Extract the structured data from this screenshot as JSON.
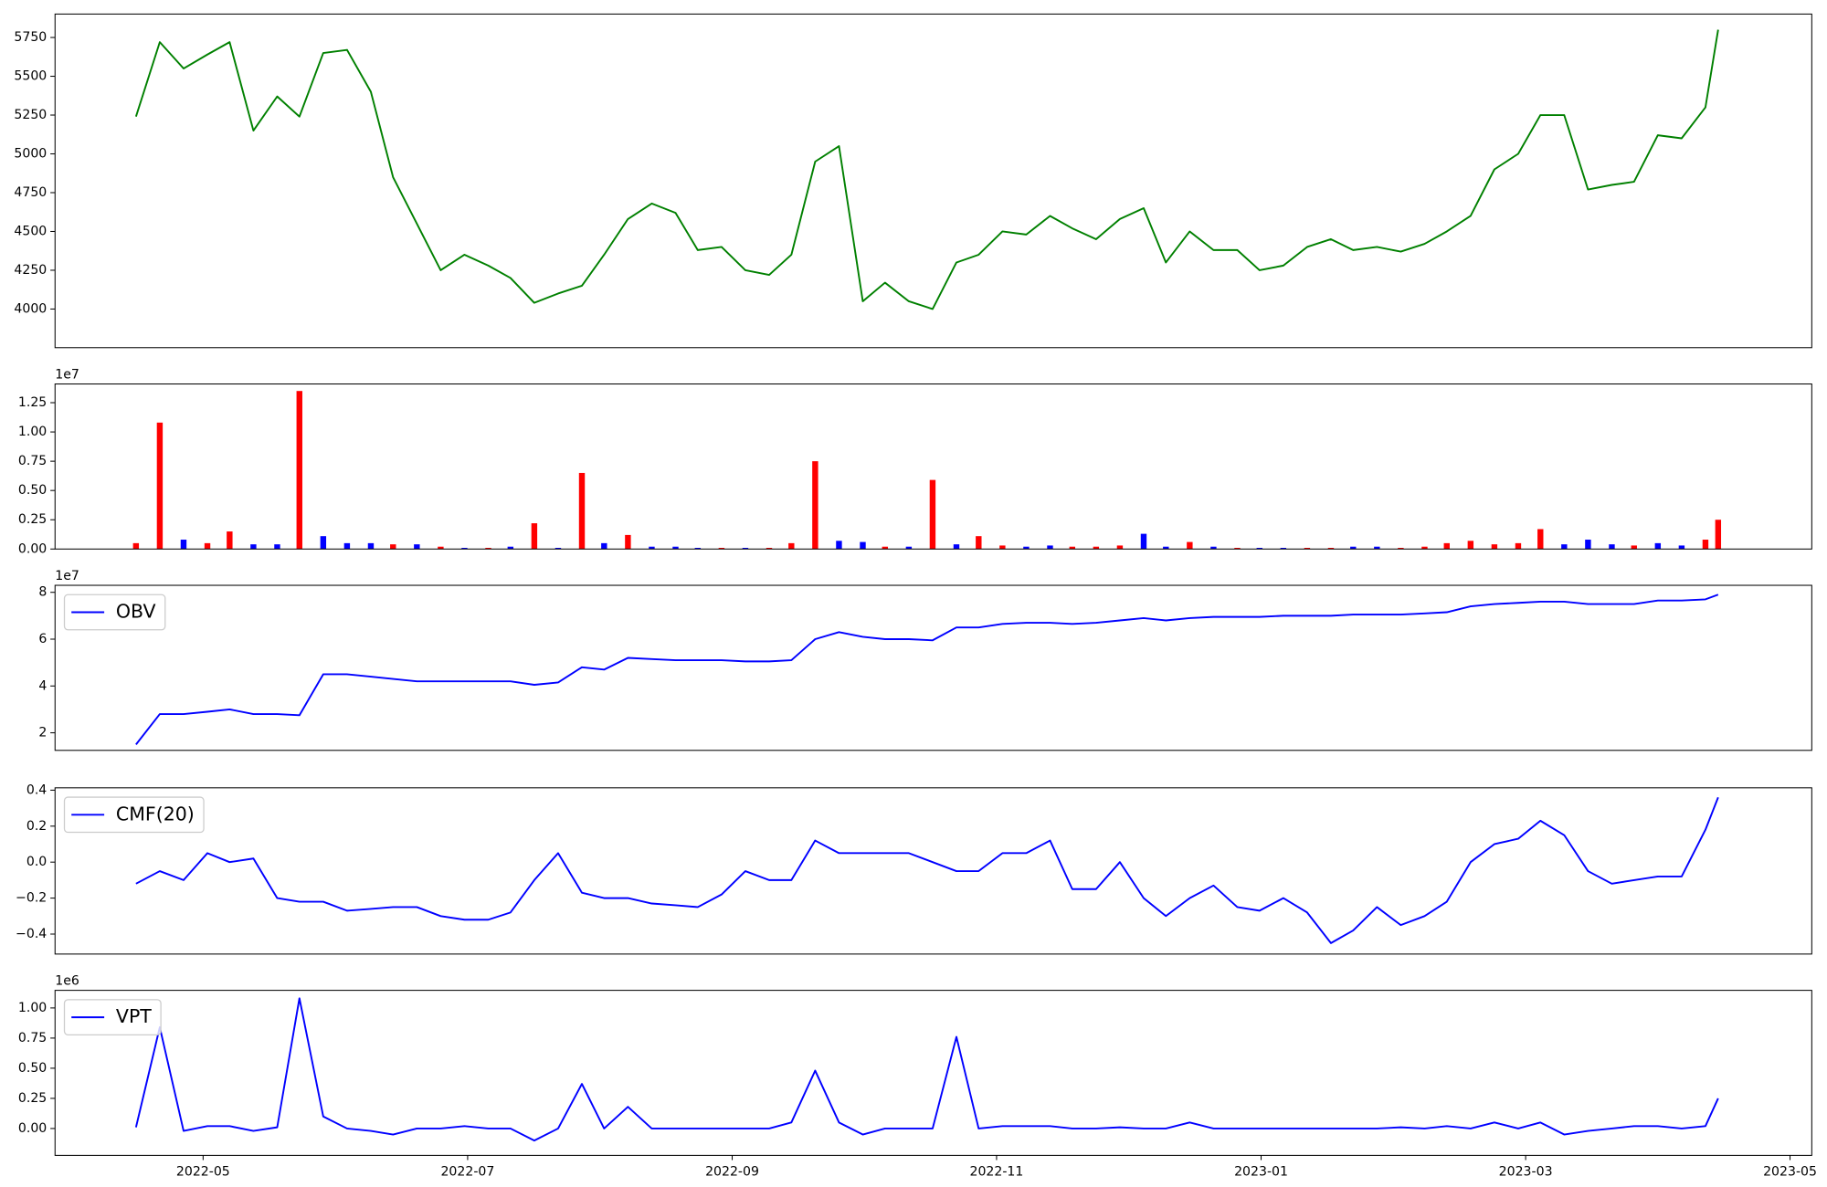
{
  "chart_data": [
    {
      "type": "line",
      "color": "#008000",
      "x": [
        2022.291,
        2022.306,
        2022.321,
        2022.336,
        2022.35,
        2022.365,
        2022.38,
        2022.394,
        2022.409,
        2022.424,
        2022.439,
        2022.453,
        2022.468,
        2022.483,
        2022.498,
        2022.513,
        2022.527,
        2022.542,
        2022.557,
        2022.572,
        2022.586,
        2022.601,
        2022.616,
        2022.631,
        2022.645,
        2022.66,
        2022.675,
        2022.69,
        2022.704,
        2022.719,
        2022.734,
        2022.749,
        2022.763,
        2022.778,
        2022.793,
        2022.808,
        2022.822,
        2022.837,
        2022.852,
        2022.867,
        2022.881,
        2022.896,
        2022.911,
        2022.926,
        2022.94,
        2022.955,
        2022.97,
        2022.985,
        2022.999,
        2023.014,
        2023.029,
        2023.044,
        2023.058,
        2023.073,
        2023.088,
        2023.103,
        2023.117,
        2023.132,
        2023.147,
        2023.162,
        2023.176,
        2023.191,
        2023.206,
        2023.221,
        2023.235,
        2023.25,
        2023.265,
        2023.28,
        2023.288
      ],
      "values": [
        5240,
        5720,
        5550,
        5640,
        5720,
        5150,
        5370,
        5240,
        5650,
        5670,
        5400,
        4850,
        4550,
        4250,
        4350,
        4280,
        4200,
        4040,
        4100,
        4150,
        4350,
        4580,
        4680,
        4620,
        4380,
        4400,
        4250,
        4220,
        4350,
        4950,
        5050,
        4050,
        4170,
        4050,
        4000,
        4300,
        4350,
        4500,
        4480,
        4600,
        4520,
        4450,
        4580,
        4650,
        4300,
        4500,
        4380,
        4380,
        4250,
        4280,
        4400,
        4450,
        4380,
        4400,
        4370,
        4420,
        4500,
        4600,
        4900,
        5000,
        5250,
        5250,
        4770,
        4800,
        4820,
        5120,
        5100,
        5300,
        5800
      ],
      "xlim": [
        2022.24,
        2023.347
      ],
      "ylim": [
        3751,
        5901
      ],
      "yticks": [
        4000,
        4250,
        4500,
        4750,
        5000,
        5250,
        5500,
        5750
      ]
    },
    {
      "type": "bar",
      "y_offset_label": "1e7",
      "x": [
        2022.291,
        2022.306,
        2022.321,
        2022.336,
        2022.35,
        2022.365,
        2022.38,
        2022.394,
        2022.409,
        2022.424,
        2022.439,
        2022.453,
        2022.468,
        2022.483,
        2022.498,
        2022.513,
        2022.527,
        2022.542,
        2022.557,
        2022.572,
        2022.586,
        2022.601,
        2022.616,
        2022.631,
        2022.645,
        2022.66,
        2022.675,
        2022.69,
        2022.704,
        2022.719,
        2022.734,
        2022.749,
        2022.763,
        2022.778,
        2022.793,
        2022.808,
        2022.822,
        2022.837,
        2022.852,
        2022.867,
        2022.881,
        2022.896,
        2022.911,
        2022.926,
        2022.94,
        2022.955,
        2022.97,
        2022.985,
        2022.999,
        2023.014,
        2023.029,
        2023.044,
        2023.058,
        2023.073,
        2023.088,
        2023.103,
        2023.117,
        2023.132,
        2023.147,
        2023.162,
        2023.176,
        2023.191,
        2023.206,
        2023.221,
        2023.235,
        2023.25,
        2023.265,
        2023.28,
        2023.288
      ],
      "values": [
        500000,
        10800000,
        800000,
        500000,
        1500000,
        400000,
        400000,
        13500000,
        1100000,
        500000,
        500000,
        400000,
        400000,
        200000,
        100000,
        100000,
        200000,
        2200000,
        100000,
        6500000,
        500000,
        1200000,
        200000,
        200000,
        100000,
        100000,
        100000,
        100000,
        500000,
        7500000,
        700000,
        600000,
        200000,
        200000,
        5900000,
        400000,
        1100000,
        300000,
        200000,
        300000,
        200000,
        200000,
        300000,
        1300000,
        200000,
        600000,
        200000,
        100000,
        100000,
        100000,
        100000,
        100000,
        200000,
        200000,
        100000,
        200000,
        500000,
        700000,
        400000,
        500000,
        1700000,
        400000,
        800000,
        400000,
        300000,
        500000,
        300000,
        800000,
        2500000
      ],
      "colors": [
        "#ff0000",
        "#ff0000",
        "#0000ff",
        "#ff0000",
        "#ff0000",
        "#0000ff",
        "#0000ff",
        "#ff0000",
        "#0000ff",
        "#0000ff",
        "#0000ff",
        "#ff0000",
        "#0000ff",
        "#ff0000",
        "#0000ff",
        "#ff0000",
        "#0000ff",
        "#ff0000",
        "#0000ff",
        "#ff0000",
        "#0000ff",
        "#ff0000",
        "#0000ff",
        "#0000ff",
        "#0000ff",
        "#ff0000",
        "#0000ff",
        "#ff0000",
        "#ff0000",
        "#ff0000",
        "#0000ff",
        "#0000ff",
        "#ff0000",
        "#0000ff",
        "#ff0000",
        "#0000ff",
        "#ff0000",
        "#ff0000",
        "#0000ff",
        "#0000ff",
        "#ff0000",
        "#ff0000",
        "#ff0000",
        "#0000ff",
        "#0000ff",
        "#ff0000",
        "#0000ff",
        "#ff0000",
        "#0000ff",
        "#0000ff",
        "#ff0000",
        "#ff0000",
        "#0000ff",
        "#0000ff",
        "#ff0000",
        "#ff0000",
        "#ff0000",
        "#ff0000",
        "#ff0000",
        "#ff0000",
        "#ff0000",
        "#0000ff",
        "#0000ff",
        "#0000ff",
        "#ff0000",
        "#0000ff",
        "#0000ff",
        "#ff0000",
        "#ff0000"
      ],
      "xlim": [
        2022.24,
        2023.347
      ],
      "ylim": [
        0,
        14100000
      ],
      "yticks": [
        {
          "value": 0,
          "label": "0.00"
        },
        {
          "value": 2500000,
          "label": "0.25"
        },
        {
          "value": 5000000,
          "label": "0.50"
        },
        {
          "value": 7500000,
          "label": "0.75"
        },
        {
          "value": 10000000,
          "label": "1.00"
        },
        {
          "value": 12500000,
          "label": "1.25"
        }
      ]
    },
    {
      "type": "line",
      "y_offset_label": "1e7",
      "legend": "upper left",
      "x": [
        2022.291,
        2022.306,
        2022.321,
        2022.336,
        2022.35,
        2022.365,
        2022.38,
        2022.394,
        2022.409,
        2022.424,
        2022.439,
        2022.453,
        2022.468,
        2022.483,
        2022.498,
        2022.513,
        2022.527,
        2022.542,
        2022.557,
        2022.572,
        2022.586,
        2022.601,
        2022.616,
        2022.631,
        2022.645,
        2022.66,
        2022.675,
        2022.69,
        2022.704,
        2022.719,
        2022.734,
        2022.749,
        2022.763,
        2022.778,
        2022.793,
        2022.808,
        2022.822,
        2022.837,
        2022.852,
        2022.867,
        2022.881,
        2022.896,
        2022.911,
        2022.926,
        2022.94,
        2022.955,
        2022.97,
        2022.985,
        2022.999,
        2023.014,
        2023.029,
        2023.044,
        2023.058,
        2023.073,
        2023.088,
        2023.103,
        2023.117,
        2023.132,
        2023.147,
        2023.162,
        2023.176,
        2023.191,
        2023.206,
        2023.221,
        2023.235,
        2023.25,
        2023.265,
        2023.28,
        2023.288
      ],
      "series": [
        {
          "name": "OBV",
          "color": "#0000ff",
          "values": [
            15000000,
            28000000,
            28000000,
            29000000,
            30000000,
            28000000,
            28000000,
            27500000,
            45000000,
            45000000,
            44000000,
            43000000,
            42000000,
            42000000,
            42000000,
            42000000,
            42000000,
            40500000,
            41500000,
            48000000,
            47000000,
            52000000,
            51500000,
            51000000,
            51000000,
            51000000,
            50500000,
            50500000,
            51000000,
            60000000,
            63000000,
            61000000,
            60000000,
            60000000,
            59500000,
            65000000,
            65000000,
            66500000,
            67000000,
            67000000,
            66500000,
            67000000,
            68000000,
            69000000,
            68000000,
            69000000,
            69500000,
            69500000,
            69500000,
            70000000,
            70000000,
            70000000,
            70500000,
            70500000,
            70500000,
            71000000,
            71500000,
            74000000,
            75000000,
            75500000,
            76000000,
            76000000,
            75000000,
            75000000,
            75000000,
            76500000,
            76500000,
            77000000,
            79000000
          ]
        }
      ],
      "xlim": [
        2022.24,
        2023.347
      ],
      "ylim": [
        12500000,
        83000000
      ],
      "yticks": [
        {
          "value": 20000000,
          "label": "2"
        },
        {
          "value": 40000000,
          "label": "4"
        },
        {
          "value": 60000000,
          "label": "6"
        },
        {
          "value": 80000000,
          "label": "8"
        }
      ]
    },
    {
      "type": "line",
      "legend": "upper left",
      "x": [
        2022.291,
        2022.306,
        2022.321,
        2022.336,
        2022.35,
        2022.365,
        2022.38,
        2022.394,
        2022.409,
        2022.424,
        2022.439,
        2022.453,
        2022.468,
        2022.483,
        2022.498,
        2022.513,
        2022.527,
        2022.542,
        2022.557,
        2022.572,
        2022.586,
        2022.601,
        2022.616,
        2022.631,
        2022.645,
        2022.66,
        2022.675,
        2022.69,
        2022.704,
        2022.719,
        2022.734,
        2022.749,
        2022.763,
        2022.778,
        2022.793,
        2022.808,
        2022.822,
        2022.837,
        2022.852,
        2022.867,
        2022.881,
        2022.896,
        2022.911,
        2022.926,
        2022.94,
        2022.955,
        2022.97,
        2022.985,
        2022.999,
        2023.014,
        2023.029,
        2023.044,
        2023.058,
        2023.073,
        2023.088,
        2023.103,
        2023.117,
        2023.132,
        2023.147,
        2023.162,
        2023.176,
        2023.191,
        2023.206,
        2023.221,
        2023.235,
        2023.25,
        2023.265,
        2023.28,
        2023.288
      ],
      "series": [
        {
          "name": "CMF(20)",
          "color": "#0000ff",
          "values": [
            -0.12,
            -0.05,
            -0.1,
            0.05,
            0.0,
            0.02,
            -0.2,
            -0.22,
            -0.22,
            -0.27,
            -0.26,
            -0.25,
            -0.25,
            -0.3,
            -0.32,
            -0.32,
            -0.28,
            -0.1,
            0.05,
            -0.17,
            -0.2,
            -0.2,
            -0.23,
            -0.24,
            -0.25,
            -0.18,
            -0.05,
            -0.1,
            -0.1,
            0.12,
            0.05,
            0.05,
            0.05,
            0.05,
            0.0,
            -0.05,
            -0.05,
            0.05,
            0.05,
            0.12,
            -0.15,
            -0.15,
            0.0,
            -0.2,
            -0.3,
            -0.2,
            -0.13,
            -0.25,
            -0.27,
            -0.2,
            -0.28,
            -0.45,
            -0.38,
            -0.25,
            -0.35,
            -0.3,
            -0.22,
            0.0,
            0.1,
            0.13,
            0.23,
            0.15,
            -0.05,
            -0.12,
            -0.1,
            -0.08,
            -0.08,
            0.18,
            0.36
          ]
        }
      ],
      "xlim": [
        2022.24,
        2023.347
      ],
      "ylim": [
        -0.511,
        0.413
      ],
      "yticks": [
        {
          "value": -0.4,
          "label": "−0.4"
        },
        {
          "value": -0.2,
          "label": "−0.2"
        },
        {
          "value": 0,
          "label": "0.0"
        },
        {
          "value": 0.2,
          "label": "0.2"
        },
        {
          "value": 0.4,
          "label": "0.4"
        }
      ]
    },
    {
      "type": "line",
      "y_offset_label": "1e6",
      "legend": "upper left",
      "x": [
        2022.291,
        2022.306,
        2022.321,
        2022.336,
        2022.35,
        2022.365,
        2022.38,
        2022.394,
        2022.409,
        2022.424,
        2022.439,
        2022.453,
        2022.468,
        2022.483,
        2022.498,
        2022.513,
        2022.527,
        2022.542,
        2022.557,
        2022.572,
        2022.586,
        2022.601,
        2022.616,
        2022.631,
        2022.645,
        2022.66,
        2022.675,
        2022.69,
        2022.704,
        2022.719,
        2022.734,
        2022.749,
        2022.763,
        2022.778,
        2022.793,
        2022.808,
        2022.822,
        2022.837,
        2022.852,
        2022.867,
        2022.881,
        2022.896,
        2022.911,
        2022.926,
        2022.94,
        2022.955,
        2022.97,
        2022.985,
        2022.999,
        2023.014,
        2023.029,
        2023.044,
        2023.058,
        2023.073,
        2023.088,
        2023.103,
        2023.117,
        2023.132,
        2023.147,
        2023.162,
        2023.176,
        2023.191,
        2023.206,
        2023.221,
        2023.235,
        2023.25,
        2023.265,
        2023.28,
        2023.288
      ],
      "series": [
        {
          "name": "VPT",
          "color": "#0000ff",
          "values": [
            10000,
            840000,
            -20000,
            20000,
            20000,
            -20000,
            10000,
            1080000,
            100000,
            0,
            -20000,
            -50000,
            0,
            0,
            20000,
            0,
            0,
            -100000,
            0,
            370000,
            0,
            180000,
            0,
            0,
            0,
            0,
            0,
            0,
            50000,
            480000,
            50000,
            -50000,
            0,
            0,
            0,
            760000,
            0,
            20000,
            20000,
            20000,
            0,
            0,
            10000,
            0,
            0,
            50000,
            0,
            0,
            0,
            0,
            0,
            0,
            0,
            0,
            10000,
            0,
            20000,
            0,
            50000,
            0,
            50000,
            -50000,
            -20000,
            0,
            20000,
            20000,
            0,
            20000,
            250000
          ]
        }
      ],
      "xlim": [
        2022.24,
        2023.347
      ],
      "ylim": [
        -223000,
        1146000
      ],
      "yticks": [
        {
          "value": 0,
          "label": "0.00"
        },
        {
          "value": 250000,
          "label": "0.25"
        },
        {
          "value": 500000,
          "label": "0.50"
        },
        {
          "value": 750000,
          "label": "0.75"
        },
        {
          "value": 1000000,
          "label": "1.00"
        }
      ],
      "xticks": [
        {
          "value": 2022.3333,
          "label": "2022-05"
        },
        {
          "value": 2022.5,
          "label": "2022-07"
        },
        {
          "value": 2022.6667,
          "label": "2022-09"
        },
        {
          "value": 2022.8333,
          "label": "2022-11"
        },
        {
          "value": 2023.0,
          "label": "2023-01"
        },
        {
          "value": 2023.1667,
          "label": "2023-03"
        },
        {
          "value": 2023.3333,
          "label": "2023-05"
        }
      ]
    }
  ]
}
